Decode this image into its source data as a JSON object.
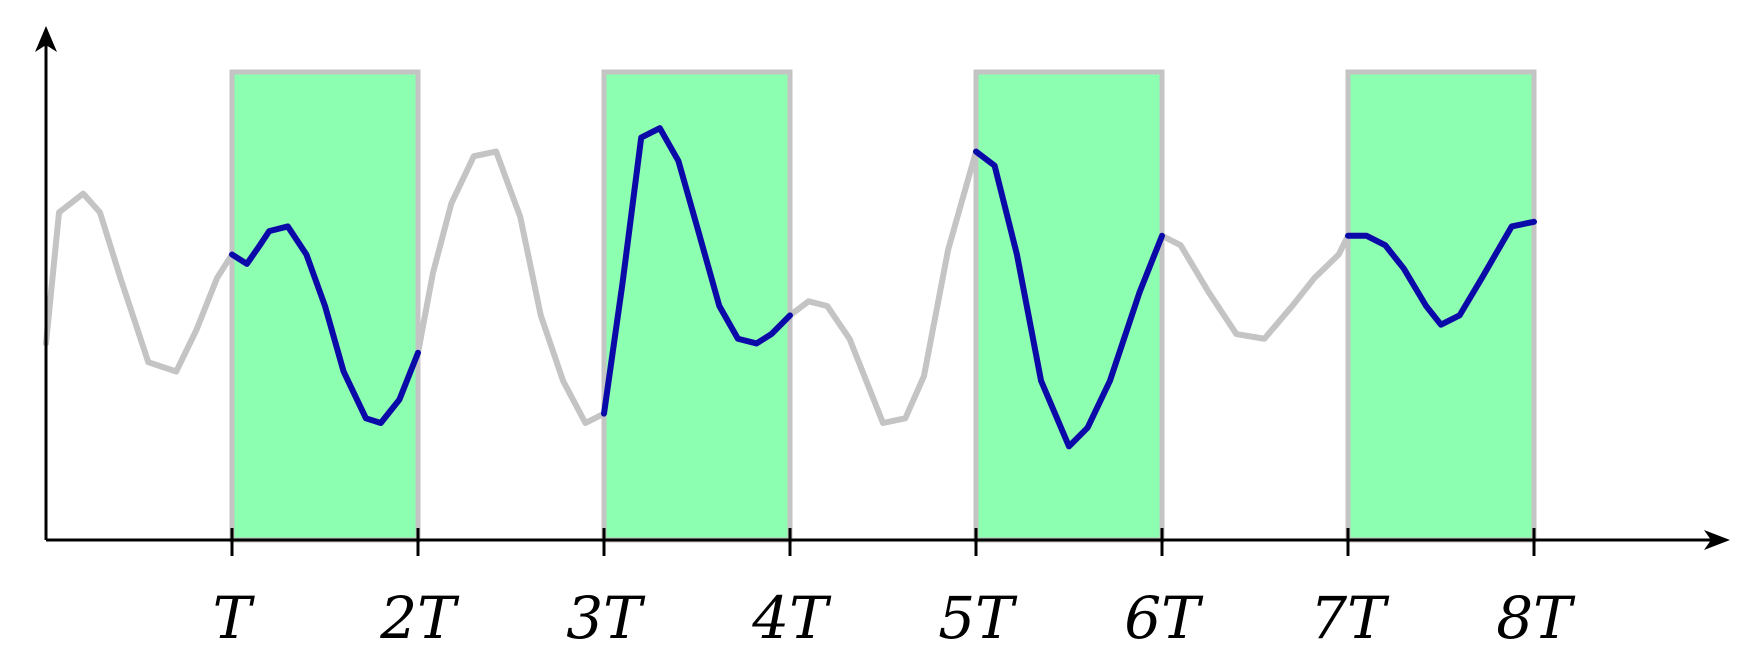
{
  "chart_data": {
    "type": "line",
    "title": "",
    "xlabel": "",
    "ylabel": "",
    "xlim": [
      0,
      9
    ],
    "ylim": [
      0,
      1
    ],
    "grid": false,
    "legend": "none",
    "ticks": [
      {
        "x": 1,
        "label": "T"
      },
      {
        "x": 2,
        "label": "2T"
      },
      {
        "x": 3,
        "label": "3T"
      },
      {
        "x": 4,
        "label": "4T"
      },
      {
        "x": 5,
        "label": "5T"
      },
      {
        "x": 6,
        "label": "6T"
      },
      {
        "x": 7,
        "label": "7T"
      },
      {
        "x": 8,
        "label": "8T"
      }
    ],
    "highlight_intervals": [
      [
        1,
        2
      ],
      [
        3,
        4
      ],
      [
        5,
        6
      ],
      [
        7,
        8
      ]
    ],
    "colors": {
      "interval_fill": "#8cffb0",
      "interval_border": "#c4c4c4",
      "signal": "#c4c4c4",
      "sampled_signal": "#0a0aa8",
      "axis": "#000000"
    },
    "series": [
      {
        "x": [
          0,
          0.07,
          0.2,
          0.29,
          0.4,
          0.55,
          0.7,
          0.81,
          0.92,
          1.0,
          1.08,
          1.15,
          1.2,
          1.3,
          1.4,
          1.5,
          1.6,
          1.72,
          1.8,
          1.9,
          2.0,
          2.08,
          2.18,
          2.3,
          2.42,
          2.55,
          2.66,
          2.78,
          2.9,
          3.0,
          3.1,
          3.2,
          3.3,
          3.4,
          3.5,
          3.62,
          3.72,
          3.82,
          3.9,
          4.0,
          4.1,
          4.2,
          4.32,
          4.5,
          4.62,
          4.72,
          4.85,
          5.0,
          5.1,
          5.22,
          5.35,
          5.5,
          5.6,
          5.72,
          5.88,
          6.0,
          6.1,
          6.25,
          6.4,
          6.55,
          6.7,
          6.82,
          6.95,
          7.0,
          7.1,
          7.2,
          7.3,
          7.42,
          7.5,
          7.6,
          7.72,
          7.88,
          8.0
        ],
        "y": [
          0.42,
          0.7,
          0.74,
          0.7,
          0.56,
          0.38,
          0.36,
          0.45,
          0.56,
          0.61,
          0.59,
          0.63,
          0.66,
          0.67,
          0.61,
          0.5,
          0.36,
          0.26,
          0.25,
          0.3,
          0.4,
          0.57,
          0.72,
          0.82,
          0.83,
          0.69,
          0.48,
          0.34,
          0.25,
          0.27,
          0.55,
          0.86,
          0.88,
          0.81,
          0.67,
          0.5,
          0.43,
          0.42,
          0.44,
          0.48,
          0.51,
          0.5,
          0.43,
          0.25,
          0.26,
          0.35,
          0.62,
          0.83,
          0.8,
          0.61,
          0.34,
          0.2,
          0.24,
          0.34,
          0.53,
          0.65,
          0.63,
          0.53,
          0.44,
          0.43,
          0.5,
          0.56,
          0.61,
          0.65,
          0.65,
          0.63,
          0.58,
          0.5,
          0.46,
          0.48,
          0.56,
          0.67,
          0.68
        ]
      }
    ]
  }
}
